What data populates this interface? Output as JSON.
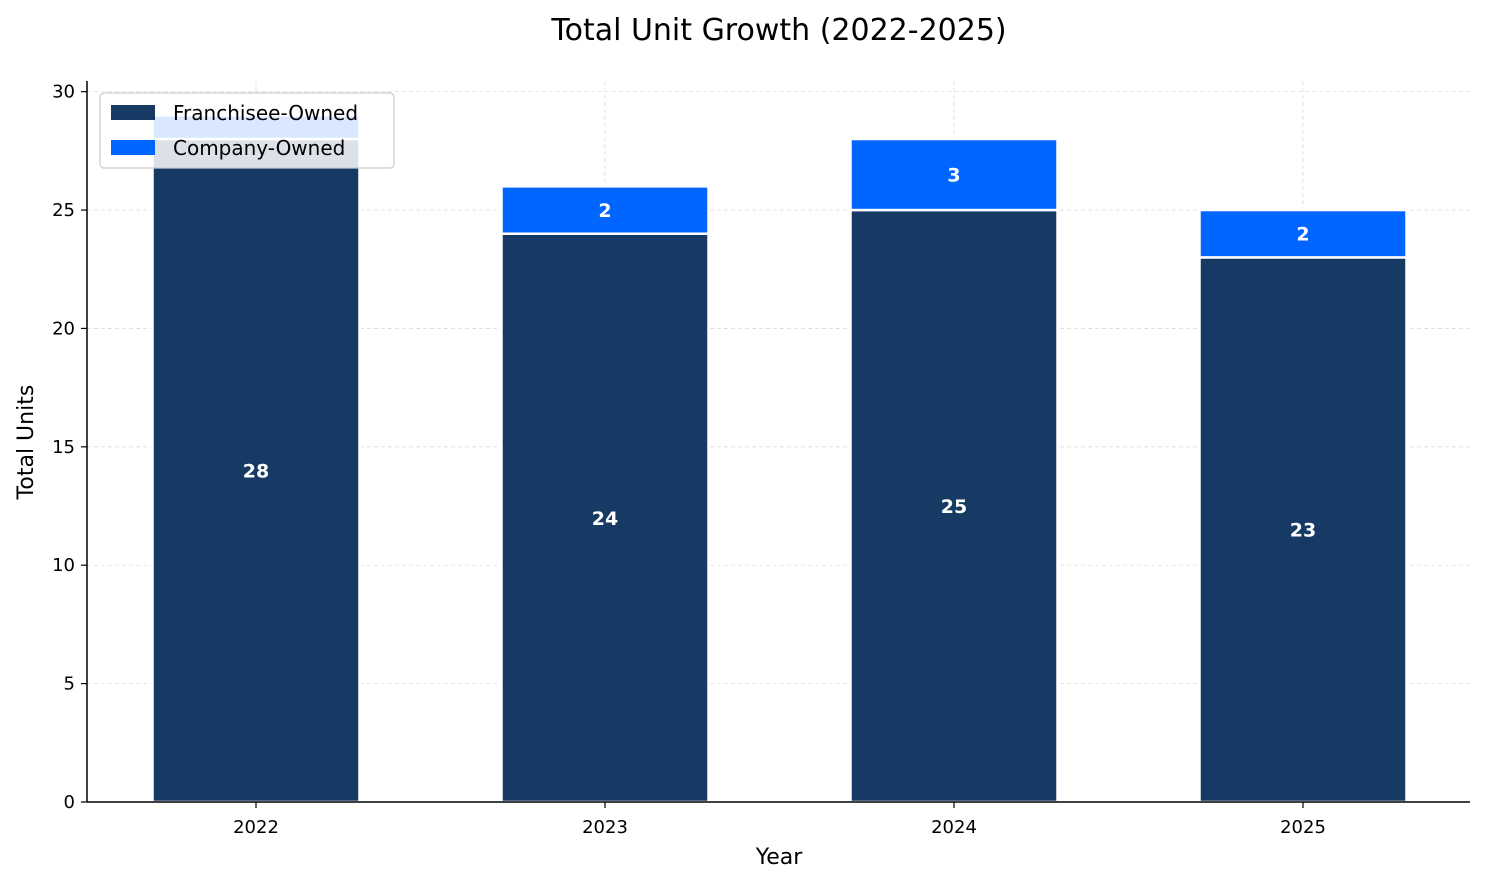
{
  "chart_data": {
    "type": "bar",
    "stacked": true,
    "title": "Total Unit Growth (2022-2025)",
    "xlabel": "Year",
    "ylabel": "Total Units",
    "categories": [
      "2022",
      "2023",
      "2024",
      "2025"
    ],
    "series": [
      {
        "name": "Franchisee-Owned",
        "values": [
          28,
          24,
          25,
          23
        ],
        "color": "#163a63"
      },
      {
        "name": "Company-Owned",
        "values": [
          1,
          2,
          3,
          2
        ],
        "color": "#0066ff"
      }
    ],
    "bar_labels": {
      "Franchisee-Owned": [
        "28",
        "24",
        "25",
        "23"
      ],
      "Company-Owned": [
        "",
        "2",
        "3",
        "2"
      ]
    },
    "ylim": [
      0,
      30.45
    ],
    "yticks": [
      0,
      5,
      10,
      15,
      20,
      25,
      30
    ],
    "grid": true,
    "legend_position": "top-left"
  }
}
